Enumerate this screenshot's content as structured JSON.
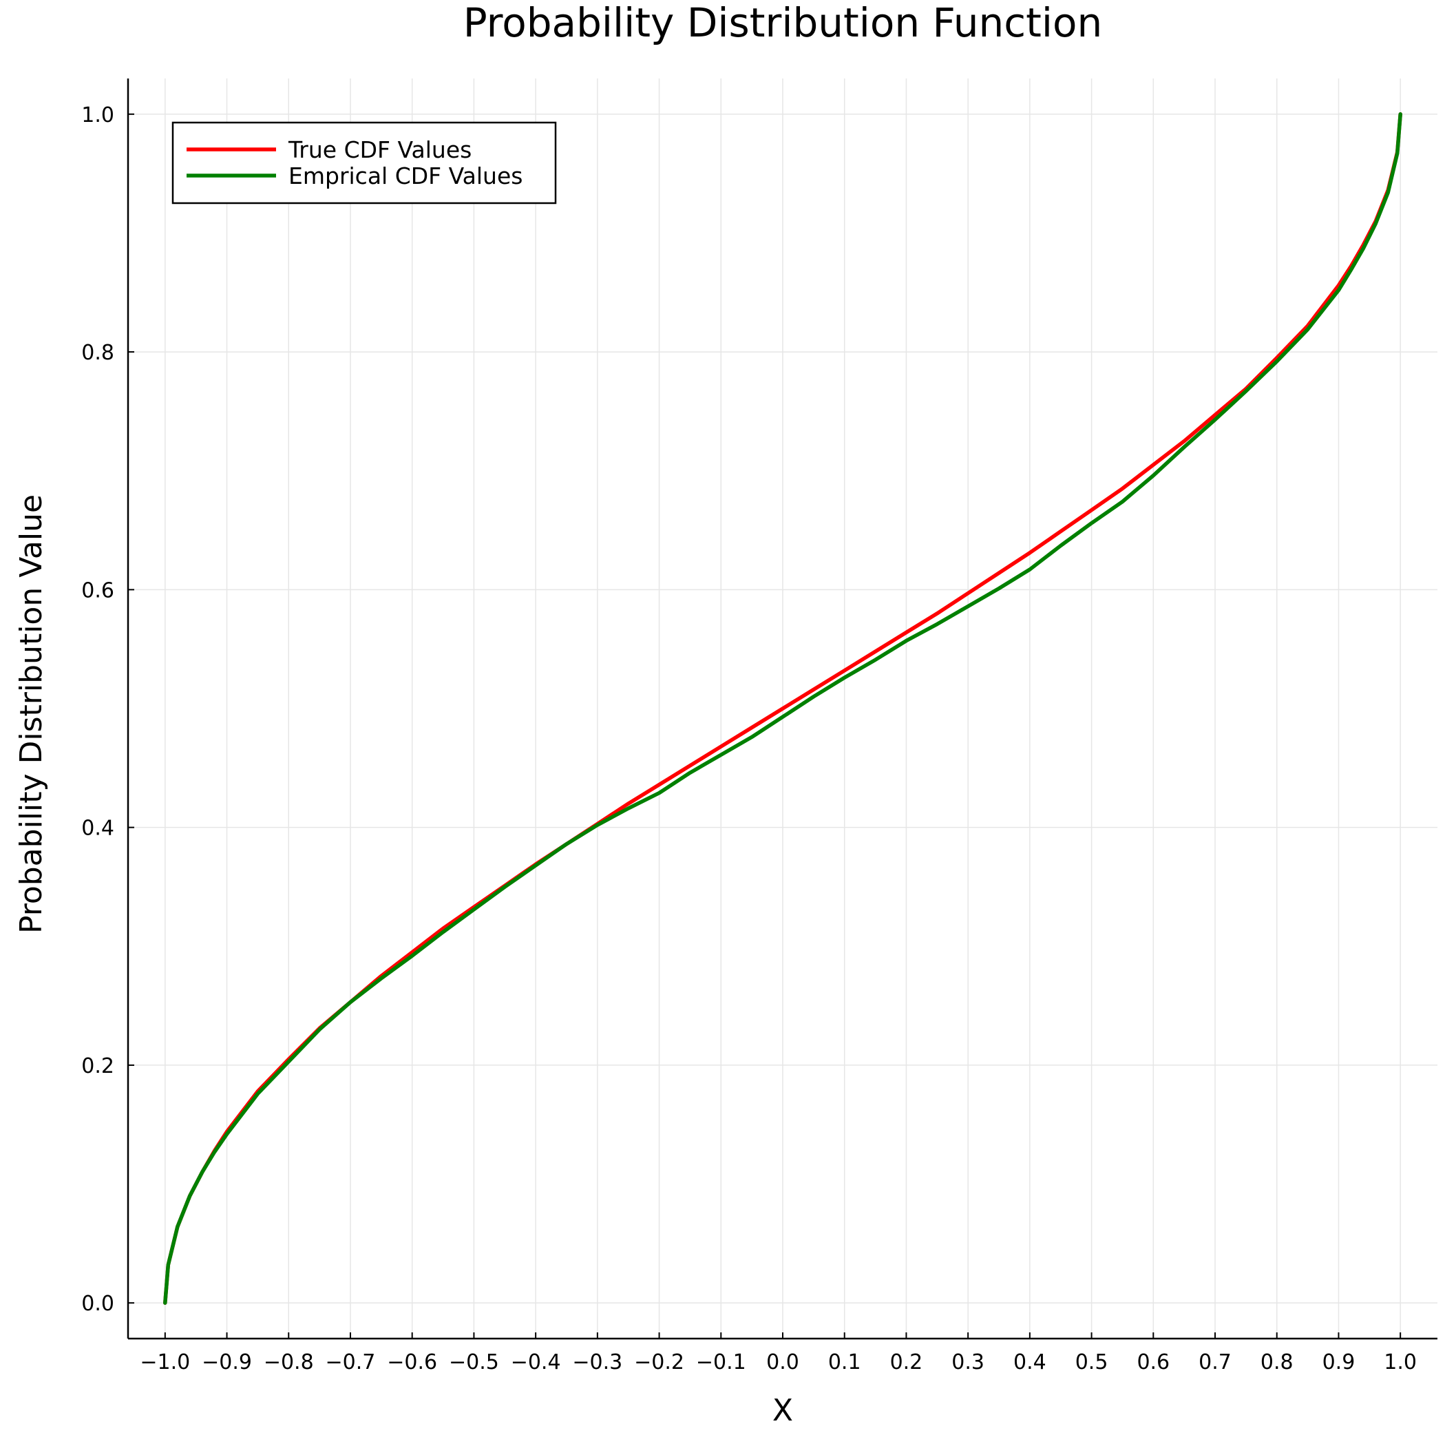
{
  "chart_data": {
    "type": "line",
    "title": "Probability Distribution Function",
    "xlabel": "X",
    "ylabel": "Probability Distribution Value",
    "xlim": [
      -1.06,
      1.06
    ],
    "ylim": [
      -0.03,
      1.03
    ],
    "xticks": [
      -1.0,
      -0.9,
      -0.8,
      -0.7,
      -0.6,
      -0.5,
      -0.4,
      -0.3,
      -0.2,
      -0.1,
      0.0,
      0.1,
      0.2,
      0.3,
      0.4,
      0.5,
      0.6,
      0.7,
      0.8,
      0.9,
      1.0
    ],
    "xtick_labels": [
      "−1.0",
      "−0.9",
      "−0.8",
      "−0.7",
      "−0.6",
      "−0.5",
      "−0.4",
      "−0.3",
      "−0.2",
      "−0.1",
      "0.0",
      "0.1",
      "0.2",
      "0.3",
      "0.4",
      "0.5",
      "0.6",
      "0.7",
      "0.8",
      "0.9",
      "1.0"
    ],
    "yticks": [
      0.0,
      0.2,
      0.4,
      0.6,
      0.8,
      1.0
    ],
    "ytick_labels": [
      "0.0",
      "0.2",
      "0.4",
      "0.6",
      "0.8",
      "1.0"
    ],
    "grid": true,
    "legend_position": "top-left",
    "series": [
      {
        "name": "True CDF Values",
        "color": "#ff0000",
        "x": [
          -1.0,
          -0.995,
          -0.98,
          -0.96,
          -0.94,
          -0.92,
          -0.9,
          -0.85,
          -0.8,
          -0.75,
          -0.7,
          -0.65,
          -0.6,
          -0.55,
          -0.5,
          -0.45,
          -0.4,
          -0.35,
          -0.3,
          -0.25,
          -0.2,
          -0.15,
          -0.1,
          -0.05,
          0.0,
          0.05,
          0.1,
          0.15,
          0.2,
          0.25,
          0.3,
          0.35,
          0.4,
          0.45,
          0.5,
          0.55,
          0.6,
          0.65,
          0.7,
          0.75,
          0.8,
          0.85,
          0.9,
          0.92,
          0.94,
          0.96,
          0.98,
          0.995,
          1.0
        ],
        "y": [
          0.0,
          0.032,
          0.064,
          0.09,
          0.11,
          0.128,
          0.144,
          0.178,
          0.205,
          0.231,
          0.253,
          0.275,
          0.295,
          0.315,
          0.333,
          0.351,
          0.369,
          0.386,
          0.403,
          0.42,
          0.436,
          0.452,
          0.468,
          0.484,
          0.5,
          0.516,
          0.532,
          0.548,
          0.564,
          0.58,
          0.597,
          0.614,
          0.631,
          0.649,
          0.667,
          0.685,
          0.705,
          0.725,
          0.747,
          0.769,
          0.795,
          0.822,
          0.856,
          0.872,
          0.89,
          0.91,
          0.936,
          0.968,
          1.0
        ]
      },
      {
        "name": "Emprical CDF Values",
        "color": "#008000",
        "x": [
          -1.0,
          -0.995,
          -0.98,
          -0.96,
          -0.94,
          -0.92,
          -0.9,
          -0.85,
          -0.8,
          -0.75,
          -0.7,
          -0.65,
          -0.6,
          -0.55,
          -0.5,
          -0.45,
          -0.4,
          -0.35,
          -0.3,
          -0.25,
          -0.2,
          -0.15,
          -0.1,
          -0.05,
          0.0,
          0.05,
          0.1,
          0.15,
          0.2,
          0.25,
          0.3,
          0.35,
          0.4,
          0.45,
          0.5,
          0.55,
          0.6,
          0.65,
          0.7,
          0.75,
          0.8,
          0.85,
          0.9,
          0.92,
          0.94,
          0.96,
          0.98,
          0.995,
          1.0
        ],
        "y": [
          0.0,
          0.032,
          0.064,
          0.09,
          0.11,
          0.127,
          0.142,
          0.176,
          0.203,
          0.23,
          0.253,
          0.273,
          0.292,
          0.312,
          0.331,
          0.35,
          0.368,
          0.386,
          0.402,
          0.416,
          0.429,
          0.446,
          0.461,
          0.476,
          0.493,
          0.51,
          0.526,
          0.541,
          0.557,
          0.571,
          0.586,
          0.601,
          0.617,
          0.637,
          0.656,
          0.674,
          0.696,
          0.72,
          0.743,
          0.767,
          0.792,
          0.819,
          0.852,
          0.869,
          0.887,
          0.908,
          0.934,
          0.967,
          1.0
        ]
      }
    ]
  }
}
